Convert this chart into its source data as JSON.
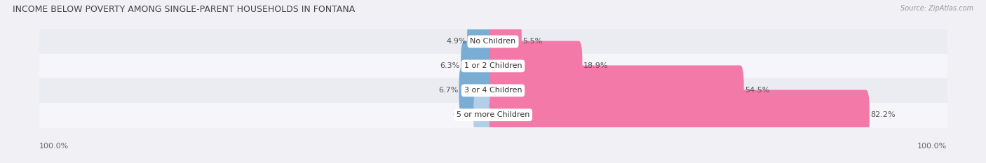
{
  "title": "INCOME BELOW POVERTY AMONG SINGLE-PARENT HOUSEHOLDS IN FONTANA",
  "source": "Source: ZipAtlas.com",
  "categories": [
    "No Children",
    "1 or 2 Children",
    "3 or 4 Children",
    "5 or more Children"
  ],
  "single_father": [
    4.9,
    6.3,
    6.7,
    0.0
  ],
  "single_mother": [
    5.5,
    18.9,
    54.5,
    82.2
  ],
  "father_color": "#7aadd4",
  "father_color_light": "#b3cfe8",
  "mother_color": "#f279a8",
  "row_bg_even": "#ebebf2",
  "row_bg_odd": "#f5f5fa",
  "title_fontsize": 9,
  "source_fontsize": 7,
  "label_fontsize": 8,
  "category_fontsize": 8,
  "legend_fontsize": 8,
  "axis_label_left": "100.0%",
  "axis_label_right": "100.0%",
  "scale_max": 100.0
}
